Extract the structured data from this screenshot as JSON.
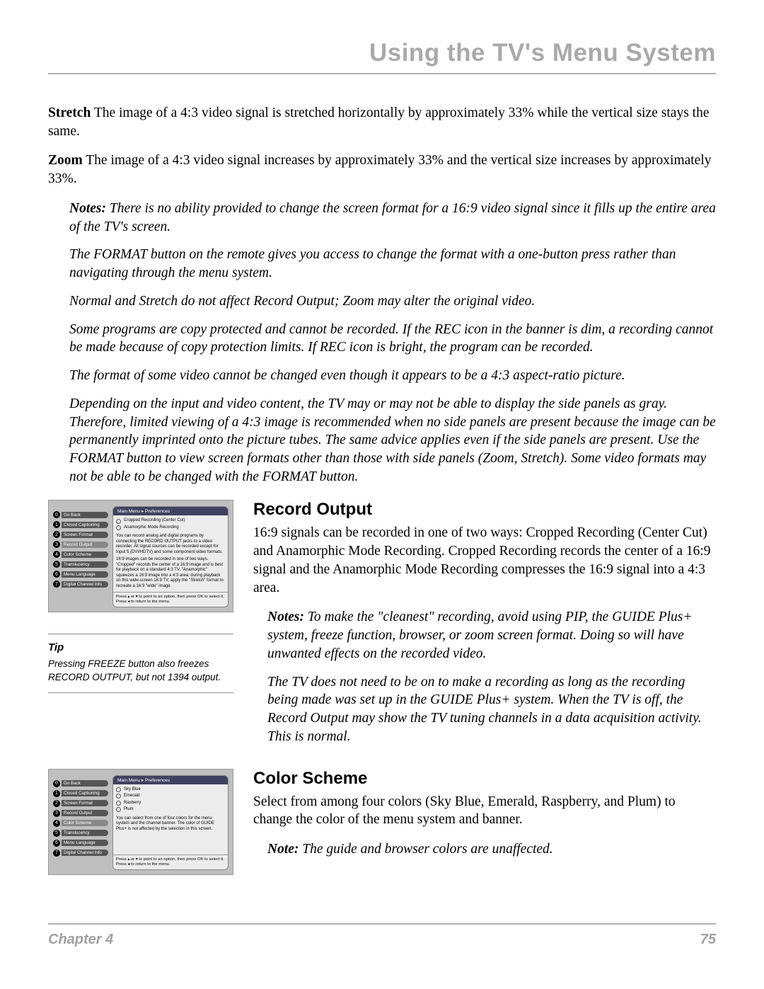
{
  "header": {
    "title": "Using the TV's Menu System"
  },
  "paragraphs": {
    "stretch_label": "Stretch",
    "stretch_text": "   The image of a 4:3 video signal is stretched horizontally by approximately 33% while the vertical size stays the same.",
    "zoom_label": "Zoom",
    "zoom_text": "   The image of a 4:3 video signal increases by approximately 33% and the vertical size increases by approximately 33%."
  },
  "notes_top": {
    "label": "Notes:",
    "p1": " There is no ability provided to change the screen format for a 16:9 video signal since it fills up the entire area of the TV's screen.",
    "p2": "The FORMAT button on the remote gives you access to change the format with a one-button press rather than navigating through the menu system.",
    "p3": "Normal and Stretch do not affect Record Output; Zoom may alter the original video.",
    "p4": "Some programs are copy protected and cannot be recorded. If the REC icon in the banner is dim, a recording cannot be made because of copy protection limits. If REC icon is bright, the program can be recorded.",
    "p5": "The format of some video cannot be changed even though it appears to be a 4:3 aspect-ratio picture.",
    "p6": "Depending on the input and video content, the TV may or may not be able to display the side panels as gray.  Therefore, limited viewing of a 4:3 image is recommended when no side panels are present because the image can be permanently imprinted onto the picture tubes. The same advice applies even if the side panels are present. Use the FORMAT button to view screen formats other than those with side panels (Zoom, Stretch).  Some video formats may not be able to be changed with the FORMAT button."
  },
  "record_output": {
    "heading": "Record Output",
    "body": "16:9 signals can be recorded in one of two ways:  Cropped Recording (Center Cut) and Anamorphic Mode Recording. Cropped Recording records the center of a 16:9 signal and the Anamorphic Mode Recording compresses the 16:9 signal into a 4:3 area.",
    "notes_label": "Notes:",
    "note1": " To make the \"cleanest\" recording, avoid using PIP, the GUIDE Plus+ system, freeze function, browser, or zoom screen format. Doing so will have unwanted effects on the recorded video.",
    "note2": "The TV does not need to be on to make a recording as long as the recording being made was set up in the GUIDE Plus+ system. When the TV is off, the Record Output may show the TV tuning channels in a data acquisition activity. This is normal."
  },
  "color_scheme": {
    "heading": "Color Scheme",
    "body": "Select from among four colors (Sky Blue, Emerald, Raspberry, and Plum) to change the color of the menu system and banner.",
    "note_label": "Note:",
    "note": " The guide and browser colors are unaffected."
  },
  "tip": {
    "heading": "Tip",
    "body": "Pressing FREEZE button also freezes RECORD OUTPUT, but not 1394 output."
  },
  "menu_common": {
    "breadcrumb": "Main Menu ▸ Preferences",
    "nav": [
      {
        "n": "0",
        "l": "Go Back"
      },
      {
        "n": "1",
        "l": "Closed Captioning"
      },
      {
        "n": "2",
        "l": "Screen Format"
      },
      {
        "n": "3",
        "l": "Record Output"
      },
      {
        "n": "4",
        "l": "Color Scheme"
      },
      {
        "n": "5",
        "l": "Translucency"
      },
      {
        "n": "6",
        "l": "Menu Language"
      },
      {
        "n": "7",
        "l": "Digital Channel Info"
      }
    ],
    "help": "Press ▴ or ▾ to point to an option, then press OK to select it. Press ◂ to return to the menu."
  },
  "menu1": {
    "opts": [
      "Cropped Recording (Center Cut)",
      "Anamorphic Mode Recording"
    ],
    "desc1": "You can record analog and digital programs by connecting the RECORD OUTPUT jacks to a video recorder. All signal sources can be recorded except for Input 5 (DVI/HDTV) and some component video formats.",
    "desc2": "16:9 images can be recorded in one of two ways. \"Cropped\" records the center of a 16:9 image and is best for playback on a standard 4:3 TV. \"Anamorphic\" squeezes a 16:9 image into a 4:3 area; during playback on this wide-screen 16:9 TV, apply the \"Stretch\" format to recreate a 16:9 \"wide\" image."
  },
  "menu2": {
    "opts": [
      "Sky Blue",
      "Emerald",
      "Rasberry",
      "Plum"
    ],
    "desc": "You can select from one of four colors for the menu system and the channel banner. The color of GUIDE Plus+ is not affected by the selection in this screen."
  },
  "footer": {
    "chapter": "Chapter 4",
    "page": "75"
  }
}
